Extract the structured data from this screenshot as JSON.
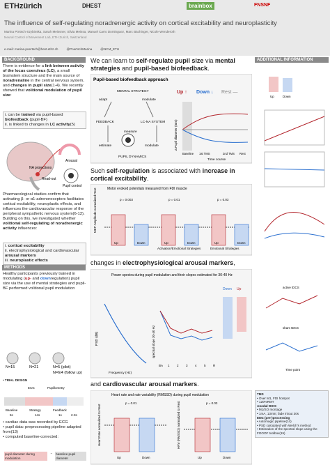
{
  "header": {
    "logos": [
      "ETHzürich",
      "DHEST",
      "brainbox",
      "FNSNF"
    ],
    "title": "The influence of self-regulating noradrenergic activity on cortical excitability and neuroplasticity",
    "authors": "Marina Pörtsch-Szybinska, Sarah Meissner, Silvia Meissa, Manuel Carro Dominguez, Marc Bächinger, Nicole Wenderoth",
    "affiliation": "Neural Control of Movement Lab, ETH Zurich, Switzerland",
    "contacts": [
      "e-mail: marina.poertsch@hest.ethz.ch",
      "@PoertschMarina",
      "@NCM_ETH"
    ]
  },
  "left": {
    "background": {
      "heading": "BACKGROUND",
      "intro": [
        "There is evidence for a ",
        "link between activity of the locus coeruleus (LC)",
        ", a small brainstem structure and the main source of ",
        "noradrenaline",
        " in the central nervous system, and ",
        "changes in pupil size",
        "(1-4). We recently showed that ",
        "volitional modulation of pupil size",
        ":"
      ],
      "list1": [
        [
          "i. can be ",
          "trained",
          " via pupil-based ",
          "biofeedback",
          " (pupil-BF)"
        ],
        [
          "ii. is linked to changes in ",
          "LC activity",
          "(5)"
        ]
      ],
      "figure": [
        "Arousal",
        "NA projections",
        "Read-out",
        "Pupil control"
      ],
      "para2": [
        "Pharmacological studies confirm that activating β- or α1-adrenoreceptors facilitates cortical excitability, neuroplastic effects, and influences the cardiovascular response of the peripheral sympathetic nervous system(6-12). Building on this, we investigated whether ",
        "volitional self-regulating of noradrenergic activity",
        " influences:"
      ],
      "list2": [
        [
          "i. ",
          "cortical excitability"
        ],
        [
          "ii. electrophysiological and cardiovascular ",
          "arousal markers"
        ],
        [
          "iii. ",
          "neuroplastic effects"
        ]
      ]
    },
    "methods": {
      "heading": "METHODS",
      "text": [
        "Healthy participants previously trained in modulating (",
        "up-",
        " and ",
        "down",
        "regulation) pupil size via the use of mental strategies and pupil-BF performed volitional pupil modulation"
      ],
      "n": [
        "N=15",
        "N=21",
        "N=5 (pilot)",
        "N=6/4 (follow up)"
      ],
      "trial": "• TRIAL DESIGN",
      "signals": [
        "ECG",
        "Pupillometry"
      ],
      "phases": [
        "Baseline",
        "Strategy",
        "Feedback"
      ],
      "durations": [
        "5s",
        "14s",
        "1s",
        "2-3s"
      ],
      "bullets": [
        "• cardiac data was recorded by ECG",
        "• pupil data: preprocessing pipeline adapted from(13)",
        "• computed baseline-corrected:"
      ],
      "formula": [
        "pupil diameter during modulation",
        "baseline pupil diameter"
      ]
    }
  },
  "middle": {
    "h1": [
      "We can learn to ",
      "self-regulate pupil size",
      " via ",
      "mental strategies",
      " and ",
      "pupil-based biofeedback",
      "."
    ],
    "panel": {
      "title": "Pupil-based biofeedback approach",
      "nodes": [
        "MENTAL STRATEGY",
        "adapt",
        "modulate",
        "FEEDBACK",
        "measure",
        "LC-NA SYSTEM",
        "estimate",
        "modulate",
        "PUPIL DYNAMICS"
      ],
      "legend": [
        "Up ↑",
        "Down ↓",
        "Rest —"
      ],
      "ylabel": "Δ Pupil diameter (mm)",
      "xlabel": "Time course",
      "phases": [
        "Baseline",
        "1st TMS",
        "2nd TMS",
        "Rest"
      ]
    },
    "h2": [
      "Such ",
      "self-regulation",
      " is associated with ",
      "increase in cortical excitability",
      "."
    ],
    "mep": {
      "caption": "Motor evoked potentials measured from FDI muscle",
      "ylabel": "MEP Amplitude normalized Rest",
      "cats": [
        "Up",
        "Down",
        "Up",
        "Down",
        "Up",
        "Down"
      ],
      "groups": [
        "Activation/Emotional Strategies",
        "Emotional Strategies"
      ],
      "p": [
        "p = 0.003",
        "p = 0.01",
        "p = 0.03"
      ]
    },
    "h3": [
      "changes in ",
      "electrophysiological arousal markers",
      ","
    ],
    "eeg": {
      "caption": "Power spectra during pupil modulation and their slopes estimated for 30-40 Hz",
      "psd": "PSD (dB)",
      "freq": "Frequency (Hz)",
      "slope": "spectral slope 30-40 Hz",
      "blocks": [
        "BA",
        "1",
        "2",
        "3",
        "4",
        "5",
        "R"
      ],
      "legend": [
        "Up",
        "Down"
      ]
    },
    "h4": [
      "and ",
      "cardiovascular arousal markers",
      "."
    ],
    "hr": {
      "caption": "Heart rate and rate variability (RMSSD) during pupil modulation",
      "y1": "Heart Rate normalized to Rest",
      "y2": "HRV (RMSSD) normalized to Rest",
      "cats": [
        "Up",
        "Down",
        "Up",
        "Down"
      ],
      "p": [
        "p = 0.01",
        "p = 0.03"
      ]
    }
  },
  "right": {
    "heading": "ADDITIONAL INFORMATION",
    "labels": [
      "Up",
      "Down",
      "active tDCS",
      "sham tDCS",
      "Time point"
    ],
    "box": {
      "title": "TMS",
      "items": [
        "• Over M1, FDI hotspot",
        "• 120%RMT"
      ],
      "sub1": "Anodal tDCS",
      "items2": [
        "• M1/SO montage",
        "• 1mA, 13min; fade in/out 30s"
      ],
      "sub2": "EEG (pre-)processing",
      "items3": [
        "• Automagic pipeline(14)",
        "• PSD calculated with Welch's method",
        "• Estimation of the spectral slope using the FOOOF toolbox(15)"
      ]
    }
  }
}
